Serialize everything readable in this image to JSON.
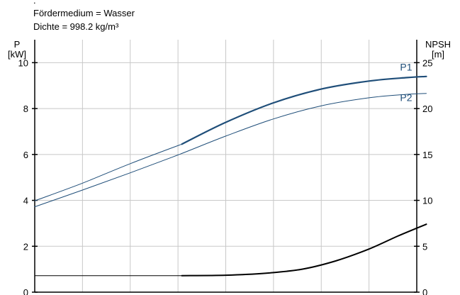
{
  "header": {
    "dot": ".",
    "medium": "Fördermedium = Wasser",
    "density": "Dichte = 998.2 kg/m³"
  },
  "chart_data": {
    "type": "line",
    "left_axis": {
      "name": "P",
      "unit": "[kW]",
      "ylim": [
        0,
        11
      ],
      "ticks": [
        0,
        2,
        4,
        6,
        8,
        10
      ]
    },
    "right_axis": {
      "name": "NPSH",
      "unit": "[m]",
      "ylim": [
        0,
        27.5
      ],
      "ticks": [
        0,
        5,
        10,
        15,
        20,
        25
      ]
    },
    "x": [
      0,
      1,
      2,
      3,
      4,
      5,
      6,
      7,
      8
    ],
    "grid": true,
    "series": [
      {
        "name": "P1",
        "axis": "left",
        "color": "#1f4e79",
        "width": 2.2,
        "x": [
          3.08,
          4,
          5,
          6,
          7,
          7.8,
          8.2
        ],
        "y": [
          6.45,
          7.4,
          8.25,
          8.85,
          9.2,
          9.35,
          9.4
        ]
      },
      {
        "name": "P1",
        "axis": "left",
        "color": "#1f4e79",
        "width": 1,
        "x": [
          0,
          1,
          2,
          3.08
        ],
        "y": [
          3.98,
          4.75,
          5.6,
          6.45
        ]
      },
      {
        "name": "P2",
        "axis": "left",
        "color": "#1f4e79",
        "width": 1,
        "x": [
          0,
          1,
          2,
          3,
          4,
          5,
          6,
          7,
          7.8,
          8.2
        ],
        "y": [
          3.72,
          4.45,
          5.2,
          5.98,
          6.8,
          7.55,
          8.12,
          8.47,
          8.62,
          8.66
        ]
      },
      {
        "name": "",
        "axis": "right",
        "color": "#000000",
        "width": 2,
        "x": [
          3.08,
          4,
          4.8,
          5.6,
          6.3,
          7,
          7.6,
          8.2
        ],
        "y": [
          1.8,
          1.85,
          2.05,
          2.5,
          3.4,
          4.7,
          6.1,
          7.4
        ]
      },
      {
        "name": "",
        "axis": "right",
        "color": "#000000",
        "width": 1,
        "x": [
          0,
          3.08
        ],
        "y": [
          1.8,
          1.8
        ]
      }
    ],
    "curve_labels": [
      {
        "text": "P1",
        "x": 7.65,
        "y": 9.65,
        "color": "#1f4e79"
      },
      {
        "text": "P2",
        "x": 7.65,
        "y": 8.33,
        "color": "#1f4e79"
      }
    ]
  }
}
